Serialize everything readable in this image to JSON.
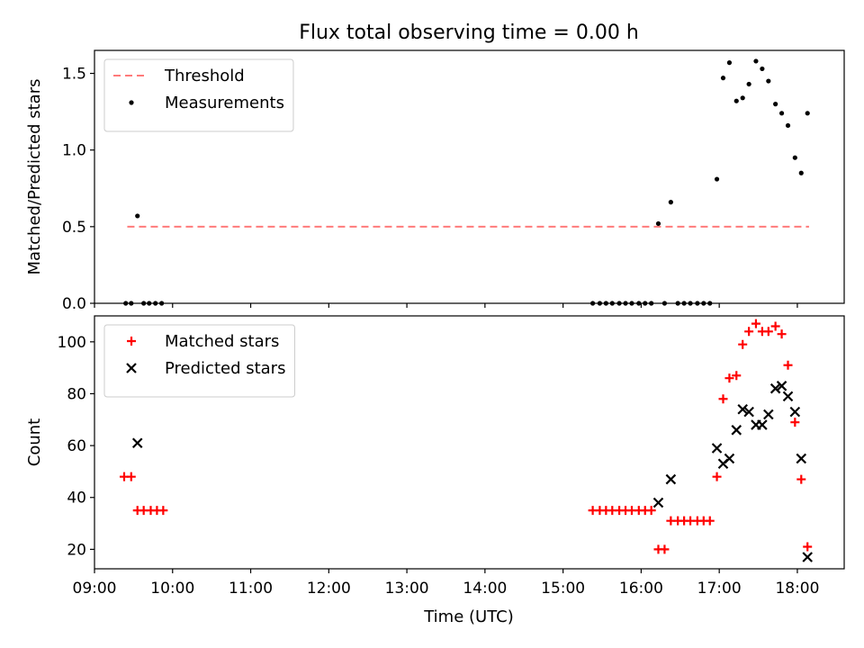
{
  "chart_data": [
    {
      "type": "scatter",
      "title": "Flux total observing time = 0.00 h",
      "xlabel": "",
      "ylabel": "Matched/Predicted stars",
      "xlim": [
        9.0,
        18.6
      ],
      "ylim": [
        0,
        1.65
      ],
      "yticks": [
        0.0,
        0.5,
        1.0,
        1.5
      ],
      "ytick_labels": [
        "0.0",
        "0.5",
        "1.0",
        "1.5"
      ],
      "legend_position": "top-left",
      "threshold": {
        "name": "Threshold",
        "y": 0.5,
        "x_range": [
          9.42,
          18.15
        ],
        "color": "#ff7a7a",
        "style": "dashed"
      },
      "series": [
        {
          "name": "Measurements",
          "marker": "dot",
          "color": "#000000",
          "points": [
            [
              9.4,
              0
            ],
            [
              9.47,
              0
            ],
            [
              9.55,
              0.57
            ],
            [
              9.63,
              0
            ],
            [
              9.7,
              0
            ],
            [
              9.78,
              0
            ],
            [
              9.86,
              0
            ],
            [
              15.38,
              0
            ],
            [
              15.47,
              0
            ],
            [
              15.55,
              0
            ],
            [
              15.63,
              0
            ],
            [
              15.72,
              0
            ],
            [
              15.8,
              0
            ],
            [
              15.88,
              0
            ],
            [
              15.97,
              0
            ],
            [
              16.05,
              0
            ],
            [
              16.13,
              0
            ],
            [
              16.22,
              0.52
            ],
            [
              16.3,
              0
            ],
            [
              16.38,
              0.66
            ],
            [
              16.47,
              0
            ],
            [
              16.55,
              0
            ],
            [
              16.63,
              0
            ],
            [
              16.72,
              0
            ],
            [
              16.8,
              0
            ],
            [
              16.88,
              0
            ],
            [
              16.97,
              0.81
            ],
            [
              17.05,
              1.47
            ],
            [
              17.13,
              1.57
            ],
            [
              17.22,
              1.32
            ],
            [
              17.3,
              1.34
            ],
            [
              17.38,
              1.43
            ],
            [
              17.47,
              1.58
            ],
            [
              17.55,
              1.53
            ],
            [
              17.63,
              1.45
            ],
            [
              17.72,
              1.3
            ],
            [
              17.8,
              1.24
            ],
            [
              17.88,
              1.16
            ],
            [
              17.97,
              0.95
            ],
            [
              18.05,
              0.85
            ],
            [
              18.13,
              1.24
            ]
          ]
        }
      ]
    },
    {
      "type": "scatter",
      "title": "",
      "xlabel": "Time (UTC)",
      "ylabel": "Count",
      "xlim": [
        9.0,
        18.6
      ],
      "ylim": [
        12.5,
        110
      ],
      "yticks": [
        20,
        40,
        60,
        80,
        100
      ],
      "ytick_labels": [
        "20",
        "40",
        "60",
        "80",
        "100"
      ],
      "xticks": [
        9,
        10,
        11,
        12,
        13,
        14,
        15,
        16,
        17,
        18
      ],
      "xtick_labels": [
        "09:00",
        "10:00",
        "11:00",
        "12:00",
        "13:00",
        "14:00",
        "15:00",
        "16:00",
        "17:00",
        "18:00"
      ],
      "legend_position": "top-left",
      "series": [
        {
          "name": "Matched stars",
          "marker": "plus",
          "color": "#ff0000",
          "points": [
            [
              9.38,
              48
            ],
            [
              9.47,
              48
            ],
            [
              9.55,
              35
            ],
            [
              9.63,
              35
            ],
            [
              9.72,
              35
            ],
            [
              9.8,
              35
            ],
            [
              9.88,
              35
            ],
            [
              15.38,
              35
            ],
            [
              15.47,
              35
            ],
            [
              15.55,
              35
            ],
            [
              15.63,
              35
            ],
            [
              15.72,
              35
            ],
            [
              15.8,
              35
            ],
            [
              15.88,
              35
            ],
            [
              15.97,
              35
            ],
            [
              16.05,
              35
            ],
            [
              16.13,
              35
            ],
            [
              16.22,
              20
            ],
            [
              16.3,
              20
            ],
            [
              16.38,
              31
            ],
            [
              16.47,
              31
            ],
            [
              16.55,
              31
            ],
            [
              16.63,
              31
            ],
            [
              16.72,
              31
            ],
            [
              16.8,
              31
            ],
            [
              16.88,
              31
            ],
            [
              16.97,
              48
            ],
            [
              17.05,
              78
            ],
            [
              17.13,
              86
            ],
            [
              17.22,
              87
            ],
            [
              17.3,
              99
            ],
            [
              17.38,
              104
            ],
            [
              17.47,
              107
            ],
            [
              17.55,
              104
            ],
            [
              17.63,
              104
            ],
            [
              17.72,
              106
            ],
            [
              17.8,
              103
            ],
            [
              17.88,
              91
            ],
            [
              17.97,
              69
            ],
            [
              18.05,
              47
            ],
            [
              18.13,
              21
            ]
          ]
        },
        {
          "name": "Predicted stars",
          "marker": "x",
          "color": "#000000",
          "points": [
            [
              9.55,
              61
            ],
            [
              16.22,
              38
            ],
            [
              16.38,
              47
            ],
            [
              16.97,
              59
            ],
            [
              17.05,
              53
            ],
            [
              17.13,
              55
            ],
            [
              17.22,
              66
            ],
            [
              17.3,
              74
            ],
            [
              17.38,
              73
            ],
            [
              17.47,
              68
            ],
            [
              17.55,
              68
            ],
            [
              17.63,
              72
            ],
            [
              17.72,
              82
            ],
            [
              17.8,
              83
            ],
            [
              17.88,
              79
            ],
            [
              17.97,
              73
            ],
            [
              18.05,
              55
            ],
            [
              18.13,
              17
            ]
          ]
        }
      ]
    }
  ]
}
